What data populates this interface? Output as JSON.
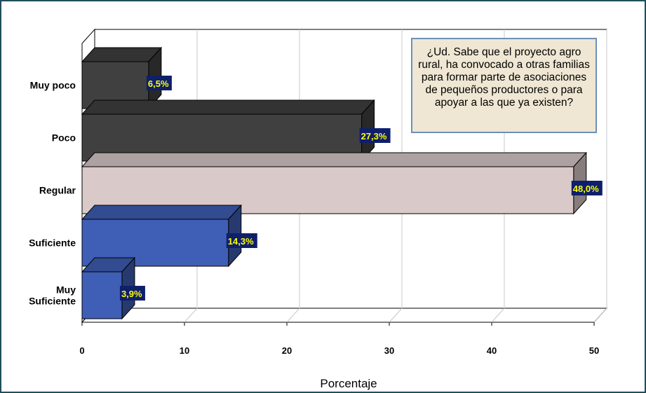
{
  "chart_data": {
    "type": "bar",
    "orientation": "horizontal",
    "categories": [
      "Muy poco",
      "Poco",
      "Regular",
      "Suficiente",
      "Muy Suficiente"
    ],
    "category_lines": [
      [
        "Muy poco"
      ],
      [
        "Poco"
      ],
      [
        "Regular"
      ],
      [
        "Suficiente"
      ],
      [
        "Muy",
        "Suficiente"
      ]
    ],
    "values": [
      6.5,
      27.3,
      48.0,
      14.3,
      3.9
    ],
    "value_labels": [
      "6,5%",
      "27,3%",
      "48,0%",
      "14,3%",
      "3,9%"
    ],
    "bar_colors": [
      "#404040",
      "#404040",
      "#d9c9c9",
      "#3f5eb5",
      "#3f5eb5"
    ],
    "xlabel": "Porcentaje",
    "ylabel": "",
    "xlim": [
      0,
      50
    ],
    "xticks": [
      0,
      10,
      20,
      30,
      40,
      50
    ],
    "tick_labels": [
      "0",
      "10",
      "20",
      "30",
      "40",
      "50"
    ],
    "grid": true,
    "annotation": "¿Ud. Sabe que el proyecto agro rural, ha convocado a otras familias para formar parte de asociaciones de pequeños productores o para apoyar a las que ya existen?"
  },
  "colors": {
    "frame_border": "#1f4e5c",
    "label_bg": "#0e1f6b",
    "label_text": "#ffff00",
    "note_bg": "#efe7d3",
    "note_border": "#6d8fb8"
  }
}
